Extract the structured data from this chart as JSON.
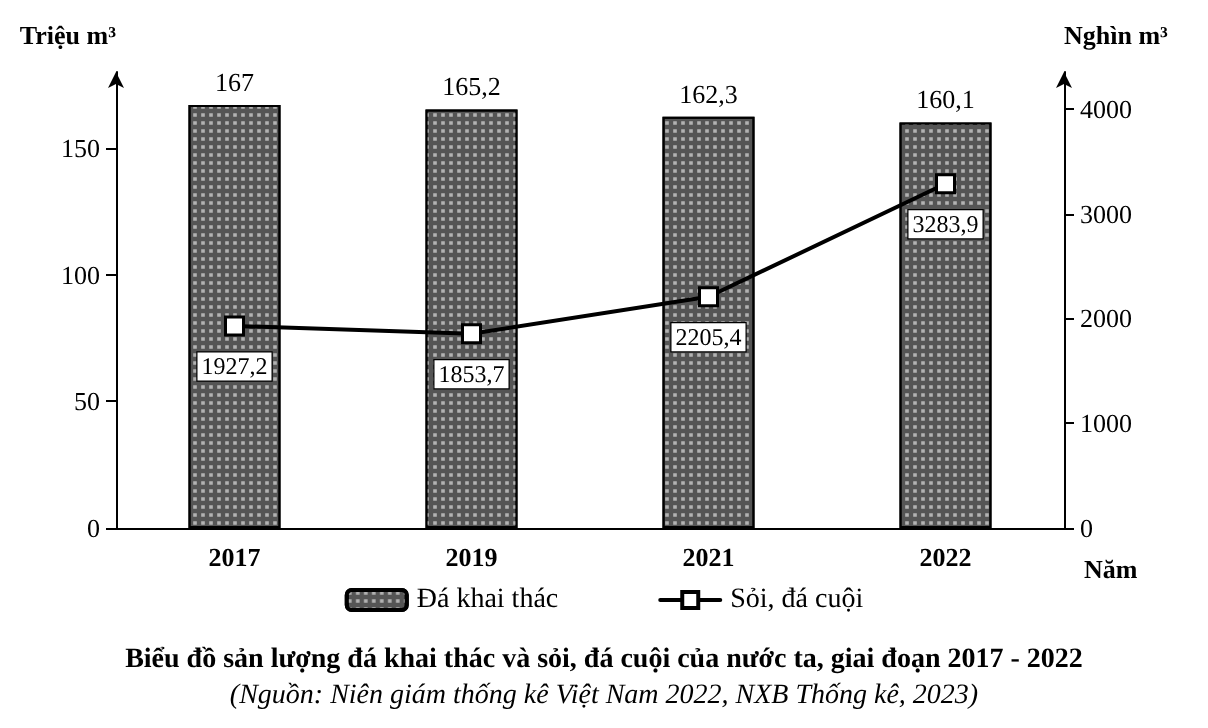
{
  "chart_data": {
    "type": "bar",
    "title": "Biểu đồ sản lượng đá khai thác và sỏi, đá cuội của nước ta, giai đoạn 2017 - 2022",
    "subtitle": "(Nguồn: Niên giám thống kê Việt Nam 2022, NXB Thống kê, 2023)",
    "xlabel": "Năm",
    "ylabel": "Triệu m³",
    "y2label": "Nghìn m³",
    "categories": [
      "2017",
      "2019",
      "2021",
      "2022"
    ],
    "series": [
      {
        "name": "Đá khai thác",
        "color": "#555555",
        "values": [
          167,
          165.2,
          162.3,
          160.1
        ],
        "value_labels": [
          "167",
          "165,2",
          "162,3",
          "160,1"
        ]
      },
      {
        "name": "Sỏi, đá cuội",
        "type": "line",
        "axis": "y2",
        "color": "#000000",
        "values": [
          1927.2,
          1853.7,
          2205.4,
          3283.9
        ],
        "value_labels": [
          "1927,2",
          "1853,7",
          "2205,4",
          "3283,9"
        ]
      }
    ],
    "ylim": [
      0,
      180
    ],
    "yticks": [
      0,
      50,
      100,
      150
    ],
    "y2lim": [
      0,
      4350
    ],
    "y2ticks": [
      0,
      1000,
      2000,
      3000,
      4000
    ],
    "grid": false,
    "legend": "bottom",
    "marker": "square",
    "line_style": "solid"
  }
}
